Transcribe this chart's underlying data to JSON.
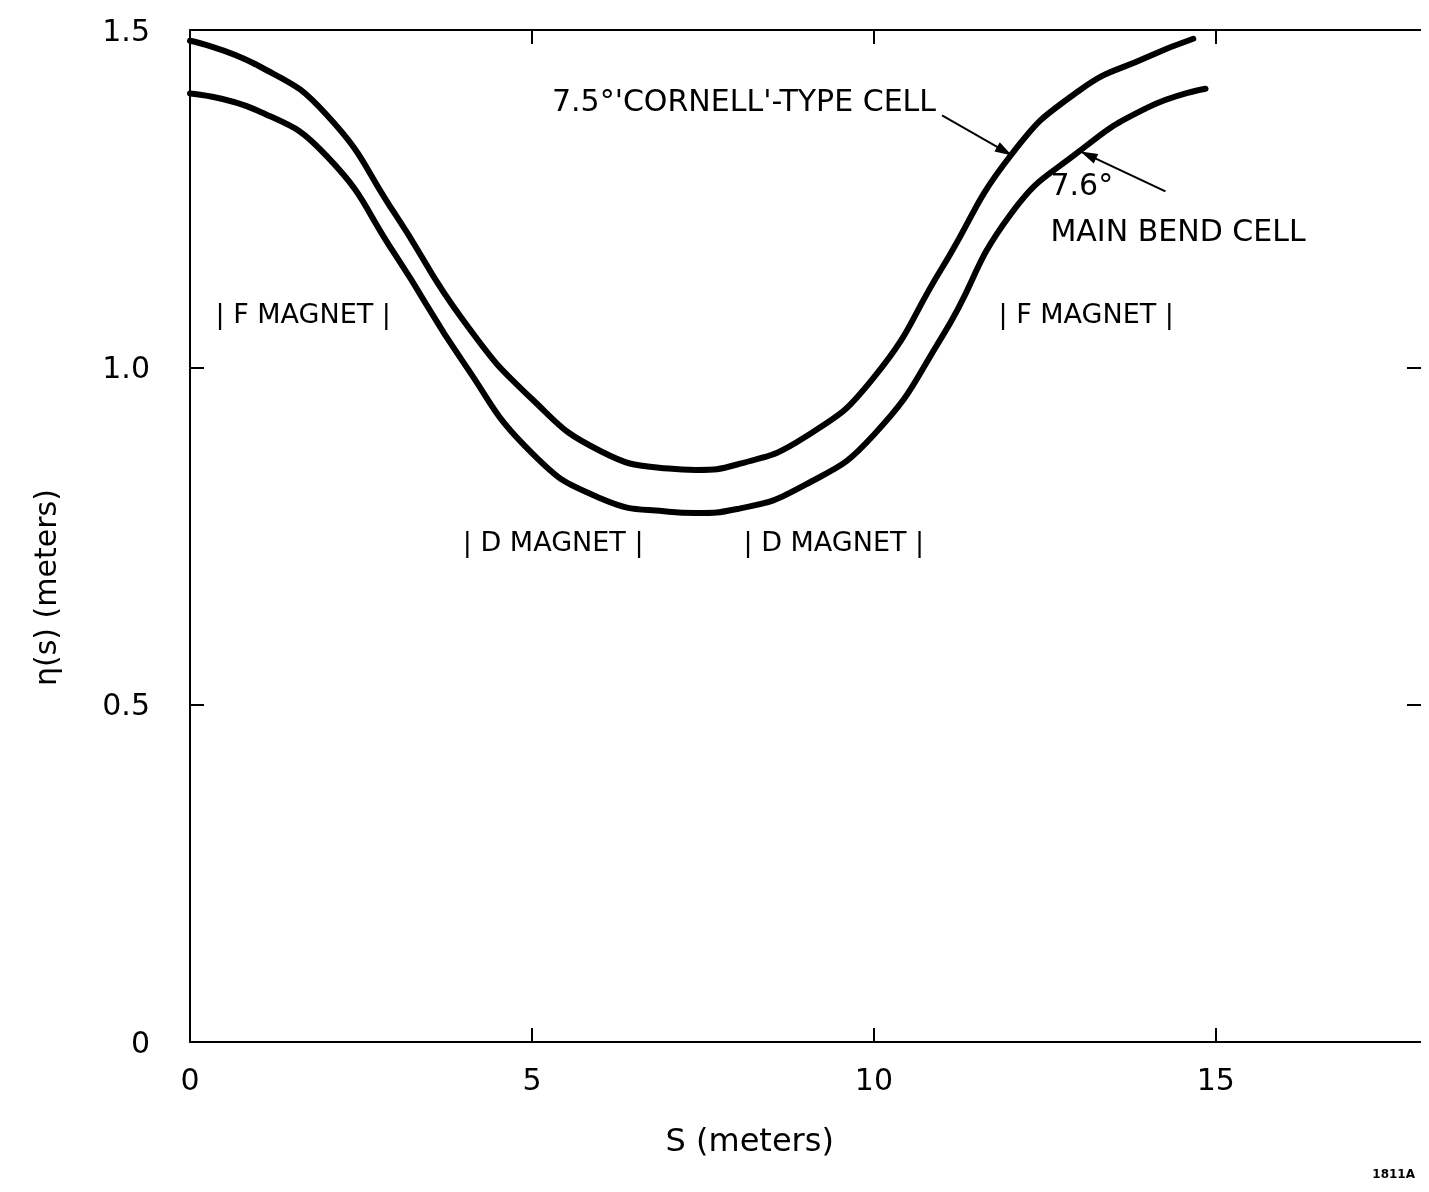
{
  "chart_data": {
    "type": "line",
    "xlabel": "S (meters)",
    "ylabel": "η(s) (meters)",
    "xlim": [
      0,
      18
    ],
    "xticks": [
      0,
      5,
      10,
      15
    ],
    "ylim": [
      0,
      1.5
    ],
    "yticks": [
      0,
      0.5,
      {
        "value": 1.0,
        "label": "1.0"
      },
      1.5
    ],
    "grid": false,
    "marker": "none",
    "line_style": "solid",
    "series": [
      {
        "color": "#000000",
        "x": [
          0,
          1,
          2,
          3,
          4,
          5,
          6,
          7,
          7.4,
          8,
          9,
          10,
          11,
          12,
          13,
          14,
          14.67
        ],
        "values": [
          1.484,
          1.447,
          1.374,
          1.227,
          1.069,
          0.953,
          0.876,
          0.85,
          0.848,
          0.856,
          0.897,
          0.985,
          1.148,
          1.314,
          1.41,
          1.46,
          1.487
        ]
      },
      {
        "color": "#000000",
        "x": [
          0,
          1,
          2,
          3,
          4,
          5,
          6,
          7,
          7.4,
          8,
          9,
          10,
          11,
          12,
          13,
          14,
          14.85
        ],
        "values": [
          1.406,
          1.38,
          1.313,
          1.167,
          1.007,
          0.873,
          0.806,
          0.786,
          0.784,
          0.79,
          0.826,
          0.9,
          1.046,
          1.227,
          1.32,
          1.385,
          1.413
        ]
      }
    ],
    "annotations": [
      {
        "text": "7.5°'CORNELL'-TYPE CELL",
        "x": 12.02,
        "y": 1.314
      },
      {
        "text": "7.6°\nMAIN BEND CELL",
        "x": 13.02,
        "y": 1.32
      },
      "| F MAGNET |",
      "| F MAGNET |",
      "| D MAGNET |",
      "| D MAGNET |",
      "1811A"
    ]
  }
}
